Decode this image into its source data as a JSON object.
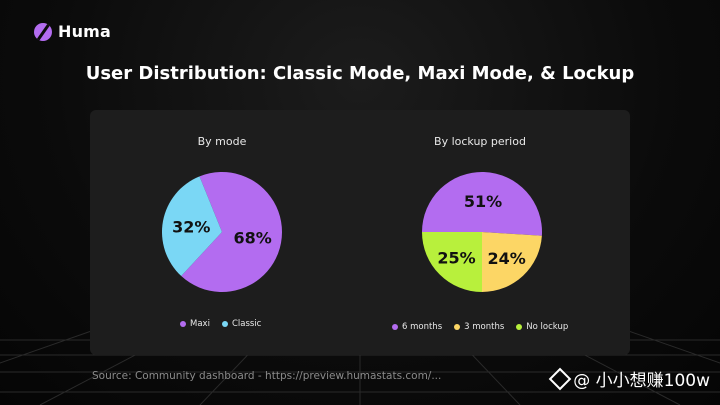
{
  "brand": {
    "name": "Huma",
    "logo_icon": "huma-logo-icon"
  },
  "title": "User Distribution: Classic Mode, Maxi Mode, & Lockup",
  "source": "Source: Community dashboard - https://preview.humastats.com/...",
  "watermark": {
    "icon": "binance-icon",
    "text": "@ 小小想赚100w"
  },
  "colors": {
    "purple": "#b36cf0",
    "cyan": "#7ad7f5",
    "yellow": "#fcd665",
    "green": "#b8f03c"
  },
  "chart_data": [
    {
      "type": "pie",
      "title": "By mode",
      "categories": [
        "Maxi",
        "Classic"
      ],
      "values": [
        68,
        32
      ],
      "labels": [
        "68%",
        "32%"
      ],
      "colors": [
        "#b36cf0",
        "#7ad7f5"
      ],
      "legend": "bottom"
    },
    {
      "type": "pie",
      "title": "By lockup period",
      "categories": [
        "6 months",
        "3 months",
        "No lockup"
      ],
      "values": [
        51,
        24,
        25
      ],
      "labels": [
        "51%",
        "24%",
        "25%"
      ],
      "colors": [
        "#b36cf0",
        "#fcd665",
        "#b8f03c"
      ],
      "legend": "bottom"
    }
  ]
}
